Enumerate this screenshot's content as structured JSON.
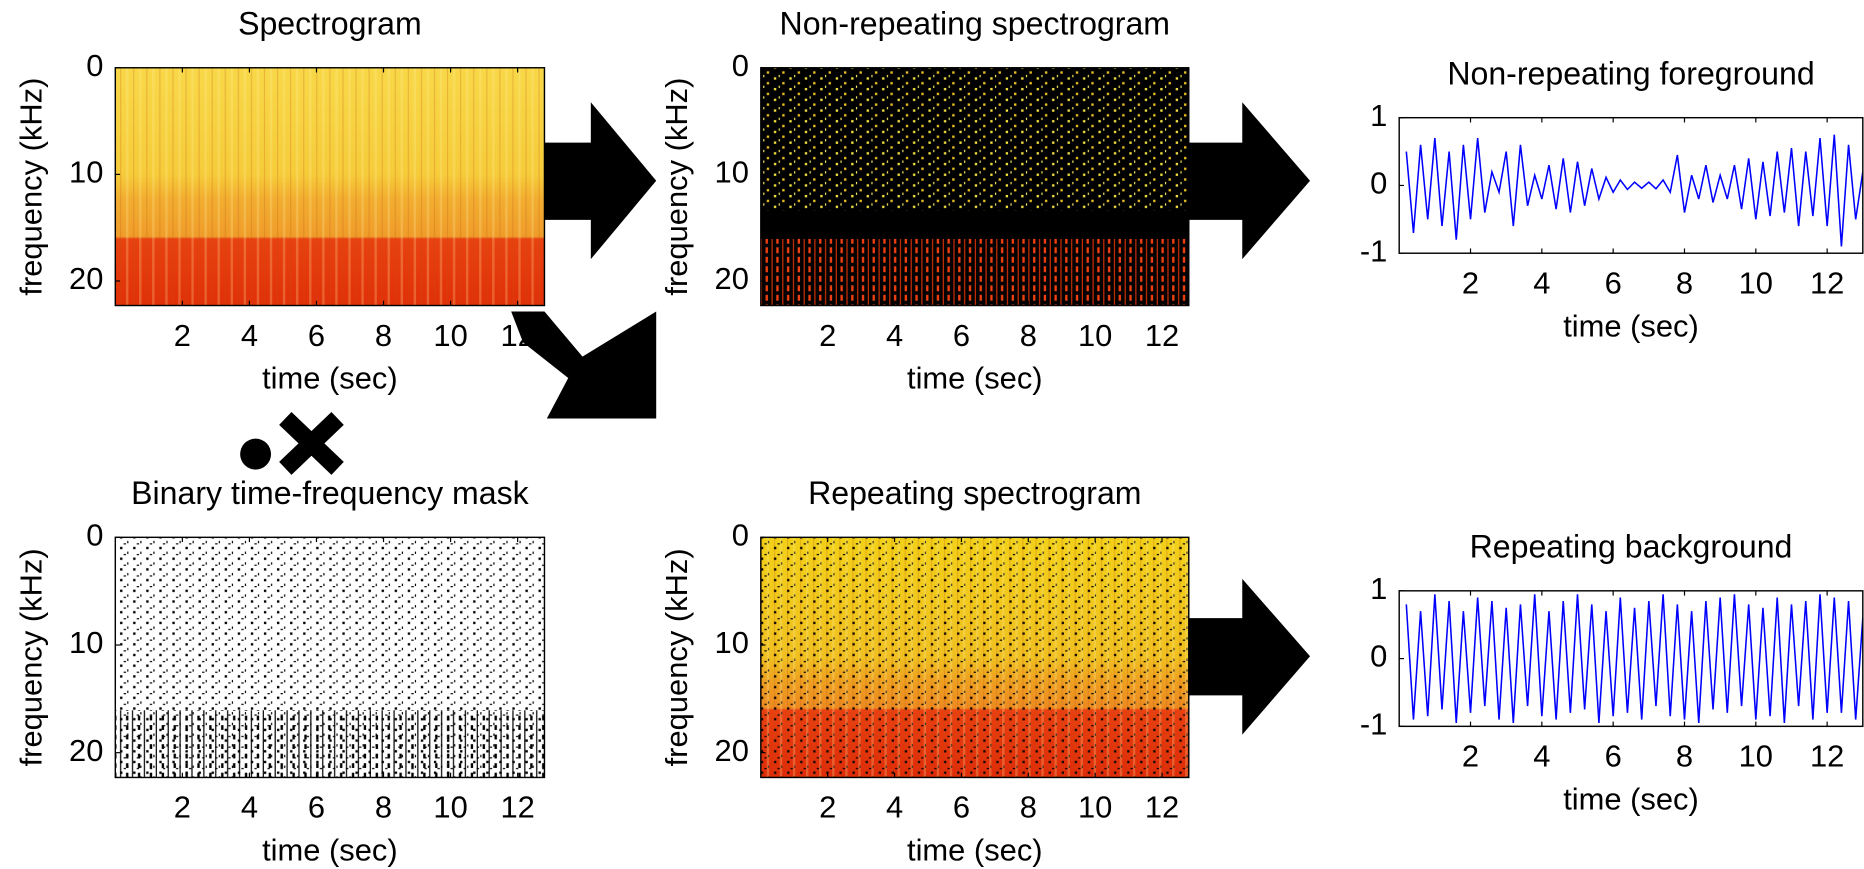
{
  "chart_data": [
    {
      "type": "image",
      "title": "Spectrogram",
      "xlabel": "time (sec)",
      "ylabel": "frequency (kHz)",
      "xlim": [
        0,
        12.8
      ],
      "xticks": [
        2,
        4,
        6,
        8,
        10,
        12
      ],
      "ylim": [
        0,
        22.3
      ],
      "yticks": [
        0,
        10,
        20
      ],
      "y_reversed": true
    },
    {
      "type": "image",
      "title": "Non-repeating spectrogram",
      "xlabel": "time (sec)",
      "ylabel": "frequency (kHz)",
      "xlim": [
        0,
        12.8
      ],
      "xticks": [
        2,
        4,
        6,
        8,
        10,
        12
      ],
      "ylim": [
        0,
        22.3
      ],
      "yticks": [
        0,
        10,
        20
      ],
      "y_reversed": true
    },
    {
      "type": "line",
      "title": "Non-repeating foreground",
      "xlabel": "time (sec)",
      "xlim": [
        0,
        13
      ],
      "xticks": [
        2,
        4,
        6,
        8,
        10,
        12
      ],
      "ylim": [
        -1,
        1
      ],
      "yticks": [
        -1,
        0,
        1
      ],
      "color": "#0000ff",
      "x": [
        0.2,
        0.4,
        0.6,
        0.8,
        1.0,
        1.2,
        1.4,
        1.6,
        1.8,
        2.0,
        2.2,
        2.4,
        2.6,
        2.8,
        3.0,
        3.2,
        3.4,
        3.6,
        3.8,
        4.0,
        4.2,
        4.4,
        4.6,
        4.8,
        5.0,
        5.2,
        5.4,
        5.6,
        5.8,
        6.0,
        6.2,
        6.4,
        6.6,
        6.8,
        7.0,
        7.2,
        7.4,
        7.6,
        7.8,
        8.0,
        8.2,
        8.4,
        8.6,
        8.8,
        9.0,
        9.2,
        9.4,
        9.6,
        9.8,
        10.0,
        10.2,
        10.4,
        10.6,
        10.8,
        11.0,
        11.2,
        11.4,
        11.6,
        11.8,
        12.0,
        12.2,
        12.4,
        12.6,
        12.8,
        13.0
      ],
      "values": [
        0.5,
        -0.7,
        0.6,
        -0.5,
        0.7,
        -0.6,
        0.5,
        -0.8,
        0.6,
        -0.5,
        0.7,
        -0.4,
        0.2,
        -0.1,
        0.5,
        -0.6,
        0.6,
        -0.3,
        0.15,
        -0.2,
        0.3,
        -0.35,
        0.4,
        -0.4,
        0.35,
        -0.3,
        0.25,
        -0.2,
        0.12,
        -0.1,
        0.08,
        -0.06,
        0.05,
        -0.04,
        0.05,
        -0.05,
        0.08,
        -0.1,
        0.45,
        -0.4,
        0.15,
        -0.2,
        0.3,
        -0.25,
        0.15,
        -0.2,
        0.3,
        -0.35,
        0.4,
        -0.5,
        0.35,
        -0.45,
        0.5,
        -0.4,
        0.55,
        -0.6,
        0.5,
        -0.45,
        0.7,
        -0.6,
        0.75,
        -0.9,
        0.6,
        -0.5,
        0.2
      ]
    },
    {
      "type": "image",
      "title": "Binary time-frequency mask",
      "xlabel": "time (sec)",
      "ylabel": "frequency (kHz)",
      "xlim": [
        0,
        12.8
      ],
      "xticks": [
        2,
        4,
        6,
        8,
        10,
        12
      ],
      "ylim": [
        0,
        22.3
      ],
      "yticks": [
        0,
        10,
        20
      ],
      "y_reversed": true
    },
    {
      "type": "image",
      "title": "Repeating spectrogram",
      "xlabel": "time (sec)",
      "ylabel": "frequency (kHz)",
      "xlim": [
        0,
        12.8
      ],
      "xticks": [
        2,
        4,
        6,
        8,
        10,
        12
      ],
      "ylim": [
        0,
        22.3
      ],
      "yticks": [
        0,
        10,
        20
      ],
      "y_reversed": true
    },
    {
      "type": "line",
      "title": "Repeating background",
      "xlabel": "time (sec)",
      "xlim": [
        0,
        13
      ],
      "xticks": [
        2,
        4,
        6,
        8,
        10,
        12
      ],
      "ylim": [
        -1,
        1
      ],
      "yticks": [
        -1,
        0,
        1
      ],
      "color": "#0000ff",
      "x": [
        0.2,
        0.4,
        0.6,
        0.8,
        1.0,
        1.2,
        1.4,
        1.6,
        1.8,
        2.0,
        2.2,
        2.4,
        2.6,
        2.8,
        3.0,
        3.2,
        3.4,
        3.6,
        3.8,
        4.0,
        4.2,
        4.4,
        4.6,
        4.8,
        5.0,
        5.2,
        5.4,
        5.6,
        5.8,
        6.0,
        6.2,
        6.4,
        6.6,
        6.8,
        7.0,
        7.2,
        7.4,
        7.6,
        7.8,
        8.0,
        8.2,
        8.4,
        8.6,
        8.8,
        9.0,
        9.2,
        9.4,
        9.6,
        9.8,
        10.0,
        10.2,
        10.4,
        10.6,
        10.8,
        11.0,
        11.2,
        11.4,
        11.6,
        11.8,
        12.0,
        12.2,
        12.4,
        12.6,
        12.8,
        13.0
      ],
      "values": [
        0.8,
        -0.9,
        0.7,
        -0.85,
        0.95,
        -0.75,
        0.85,
        -0.95,
        0.7,
        -0.8,
        0.9,
        -0.7,
        0.85,
        -0.9,
        0.75,
        -0.95,
        0.8,
        -0.7,
        0.95,
        -0.85,
        0.7,
        -0.9,
        0.85,
        -0.8,
        0.95,
        -0.75,
        0.8,
        -0.95,
        0.7,
        -0.85,
        0.9,
        -0.8,
        0.75,
        -0.9,
        0.85,
        -0.7,
        0.95,
        -0.85,
        0.8,
        -0.9,
        0.7,
        -0.95,
        0.85,
        -0.75,
        0.9,
        -0.8,
        0.95,
        -0.7,
        0.8,
        -0.9,
        0.75,
        -0.85,
        0.9,
        -0.95,
        0.8,
        -0.7,
        0.85,
        -0.9,
        0.95,
        -0.8,
        0.9,
        -0.8,
        0.85,
        -0.9,
        0.6
      ]
    }
  ]
}
